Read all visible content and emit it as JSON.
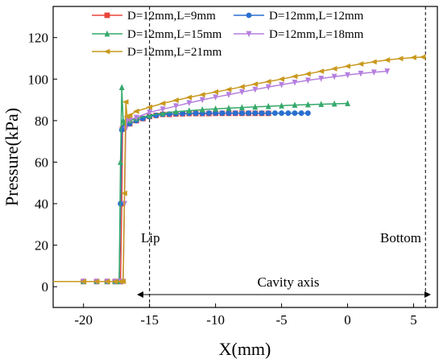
{
  "chart_data": {
    "type": "line",
    "xlabel": "X(mm)",
    "ylabel": "Pressure(kPa)",
    "xlim": [
      -22.3,
      6.8
    ],
    "ylim": [
      -10,
      135
    ],
    "xticks": [
      -20,
      -15,
      -10,
      -5,
      0,
      5
    ],
    "yticks": [
      0,
      20,
      40,
      60,
      80,
      100,
      120
    ],
    "grid": false,
    "legend_position": "top",
    "series": [
      {
        "name": "D=12mm,L=9mm",
        "color": "#e8453c",
        "marker": "square",
        "x": [
          -22.3,
          -20,
          -19,
          -18.2,
          -17.6,
          -17.2,
          -17.1,
          -17.05,
          -16.9,
          -16.5,
          -16,
          -15.5,
          -15,
          -14.5,
          -14,
          -13.5,
          -13,
          -12.5,
          -12,
          -11.5,
          -11,
          -10.5,
          -10,
          -9.5,
          -9,
          -8.5,
          -8,
          -7.5,
          -7,
          -6.5,
          -6
        ],
        "y": [
          2.5,
          2.5,
          2.5,
          2.5,
          2.5,
          2.5,
          40,
          76,
          77,
          78.5,
          80,
          81,
          82,
          82.5,
          83,
          83,
          83.2,
          83.3,
          83.4,
          83.4,
          83.4,
          83.4,
          83.5,
          83.5,
          83.5,
          83.5,
          83.5,
          83.5,
          83.5,
          83.5,
          83.5
        ]
      },
      {
        "name": "D=12mm,L=12mm",
        "color": "#2a6fcf",
        "marker": "circle",
        "x": [
          -22.3,
          -20,
          -19,
          -18.2,
          -17.6,
          -17.3,
          -17.2,
          -17.1,
          -16.9,
          -16.5,
          -16,
          -15.5,
          -15,
          -14.5,
          -14,
          -13.5,
          -13,
          -12.5,
          -12,
          -11.5,
          -11,
          -10.5,
          -10,
          -9.5,
          -9,
          -8.5,
          -8,
          -7.5,
          -7,
          -6.5,
          -6,
          -5.5,
          -5,
          -4.5,
          -4,
          -3.5,
          -3
        ],
        "y": [
          2.5,
          2.5,
          2.5,
          2.5,
          2.5,
          2.5,
          40,
          75.5,
          77,
          78.5,
          80,
          81,
          82,
          82.5,
          83,
          83.2,
          83.3,
          83.4,
          83.5,
          83.5,
          83.5,
          83.6,
          83.6,
          83.6,
          83.6,
          83.6,
          83.6,
          83.6,
          83.6,
          83.6,
          83.6,
          83.6,
          83.6,
          83.6,
          83.6,
          83.6,
          83.6
        ]
      },
      {
        "name": "D=12mm,L=15mm",
        "color": "#35a86b",
        "marker": "triangle-up",
        "x": [
          -22.3,
          -20,
          -19,
          -18.2,
          -17.6,
          -17.3,
          -17.2,
          -17.1,
          -17.0,
          -16.9,
          -16.5,
          -16,
          -15,
          -14,
          -13,
          -12,
          -11,
          -10,
          -9,
          -8,
          -7,
          -6,
          -5,
          -4,
          -3,
          -2,
          -1,
          0
        ],
        "y": [
          2.5,
          2.5,
          2.5,
          2.5,
          2.5,
          2.5,
          60,
          96,
          80,
          79,
          80,
          81,
          82.5,
          83.5,
          84.3,
          84.8,
          85.3,
          85.7,
          86,
          86.3,
          86.6,
          86.9,
          87.2,
          87.5,
          87.7,
          87.9,
          88.1,
          88.3
        ]
      },
      {
        "name": "D=12mm,L=18mm",
        "color": "#b57fde",
        "marker": "triangle-down",
        "x": [
          -22.3,
          -20,
          -19,
          -18.2,
          -17.6,
          -17.2,
          -17.0,
          -16.9,
          -16.8,
          -16.7,
          -16.5,
          -16,
          -15,
          -14,
          -13,
          -12,
          -11,
          -10,
          -9,
          -8,
          -7,
          -6,
          -5,
          -4,
          -3,
          -2,
          -1,
          0,
          1,
          2,
          3
        ],
        "y": [
          2.5,
          2.5,
          2.5,
          2.5,
          2.5,
          2.5,
          2.5,
          40,
          76,
          80,
          80.5,
          81.5,
          84,
          85.5,
          87,
          88.5,
          90,
          91.3,
          92.5,
          93.8,
          95,
          96.2,
          97.3,
          98.4,
          99.4,
          100.3,
          101.2,
          102,
          102.7,
          103.3,
          103.8
        ]
      },
      {
        "name": "D=12mm,L=21mm",
        "color": "#c9991e",
        "marker": "triangle-left",
        "x": [
          -22.3,
          -20,
          -19,
          -18.2,
          -17.6,
          -17.2,
          -17.0,
          -16.9,
          -16.8,
          -16.7,
          -16.5,
          -16,
          -15,
          -14,
          -13,
          -12,
          -11,
          -10,
          -9,
          -8,
          -7,
          -6,
          -5,
          -4,
          -3,
          -2,
          -1,
          0,
          1,
          2,
          3,
          4,
          5,
          5.7
        ],
        "y": [
          2.5,
          2.5,
          2.5,
          2.5,
          2.5,
          2.5,
          2.5,
          45,
          89,
          82,
          82.5,
          84.5,
          86.5,
          88.3,
          89.8,
          91.2,
          92.5,
          93.8,
          95,
          96.3,
          97.6,
          98.8,
          100,
          101.3,
          102.5,
          103.8,
          105,
          106.2,
          107.3,
          108.3,
          109.2,
          109.9,
          110.4,
          110.6
        ]
      }
    ],
    "vlines": [
      -15,
      5.9
    ],
    "annotations": {
      "lip": "Lip",
      "bottom": "Bottom",
      "cavity_axis": "Cavity axis"
    }
  }
}
